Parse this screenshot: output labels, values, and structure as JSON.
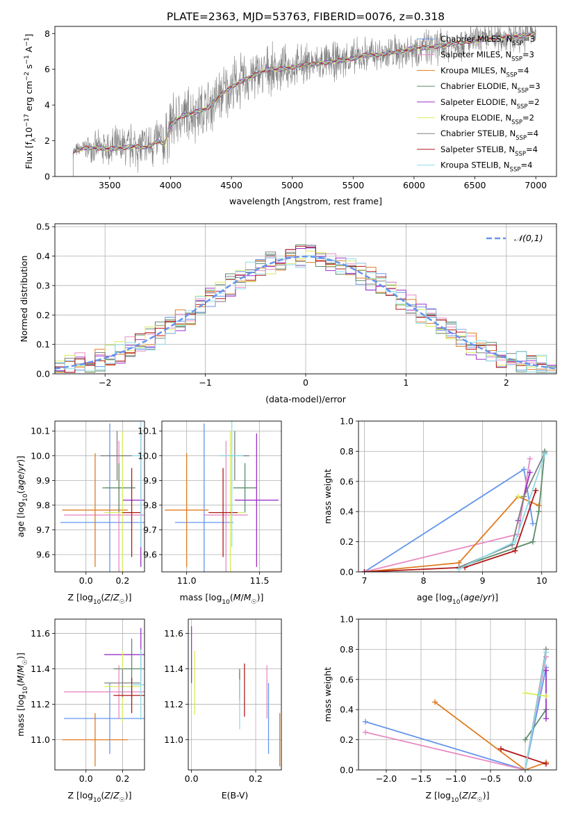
{
  "title": "PLATE=2363, MJD=53763, FIBERID=0076, z=0.318",
  "colors": {
    "Chabrier MILES": "#6495ed",
    "Salpeter MILES": "#e88bc4",
    "Kroupa MILES": "#e07b20",
    "Chabrier ELODIE": "#5c8a6a",
    "Salpeter ELODIE": "#9b30c8",
    "Kroupa ELODIE": "#d8ec5c",
    "Chabrier STELIB": "#808080",
    "Salpeter STELIB": "#b01818",
    "Kroupa STELIB": "#8cdce8"
  },
  "chart_data": [
    {
      "id": "spectrum",
      "type": "line",
      "xlabel": "wavelength [Angstrom, rest frame]",
      "ylabel": "Flux [f_λ 10^-17 erg cm^-2 s^-1 A^-1]",
      "xlim": [
        3050,
        7170
      ],
      "ylim": [
        0,
        8.4
      ],
      "xticks": [
        3500,
        4000,
        4500,
        5000,
        5500,
        6000,
        6500,
        7000
      ],
      "yticks": [
        0,
        2,
        4,
        6,
        8
      ],
      "grid": false,
      "legend_position": "upper-right",
      "legend": [
        {
          "name": "Chabrier MILES",
          "label": "Chabrier MILES, N",
          "sub": "SSP",
          "n": "=3"
        },
        {
          "name": "Salpeter MILES",
          "label": "Salpeter MILES, N",
          "sub": "SSP",
          "n": "=3"
        },
        {
          "name": "Kroupa MILES",
          "label": "Kroupa MILES, N",
          "sub": "SSP",
          "n": "=4"
        },
        {
          "name": "Chabrier ELODIE",
          "label": "Chabrier ELODIE, N",
          "sub": "SSP",
          "n": "=3"
        },
        {
          "name": "Salpeter ELODIE",
          "label": "Salpeter ELODIE, N",
          "sub": "SSP",
          "n": "=2"
        },
        {
          "name": "Kroupa ELODIE",
          "label": "Kroupa ELODIE, N",
          "sub": "SSP",
          "n": "=2"
        },
        {
          "name": "Chabrier STELIB",
          "label": "Chabrier STELIB, N",
          "sub": "SSP",
          "n": "=4"
        },
        {
          "name": "Salpeter STELIB",
          "label": "Salpeter STELIB, N",
          "sub": "SSP",
          "n": "=4"
        },
        {
          "name": "Kroupa STELIB",
          "label": "Kroupa STELIB, N",
          "sub": "SSP",
          "n": "=4"
        }
      ],
      "model_continuum": [
        [
          3200,
          1.4
        ],
        [
          3300,
          1.6
        ],
        [
          3400,
          1.6
        ],
        [
          3500,
          1.55
        ],
        [
          3600,
          1.6
        ],
        [
          3700,
          1.7
        ],
        [
          3800,
          1.6
        ],
        [
          3900,
          2.0
        ],
        [
          3950,
          1.8
        ],
        [
          4000,
          2.9
        ],
        [
          4100,
          3.4
        ],
        [
          4200,
          3.6
        ],
        [
          4300,
          3.8
        ],
        [
          4400,
          4.5
        ],
        [
          4500,
          5.0
        ],
        [
          4600,
          5.4
        ],
        [
          4700,
          5.7
        ],
        [
          4800,
          6.0
        ],
        [
          4900,
          6.0
        ],
        [
          5000,
          6.1
        ],
        [
          5100,
          6.3
        ],
        [
          5200,
          6.3
        ],
        [
          5300,
          6.4
        ],
        [
          5400,
          6.5
        ],
        [
          5500,
          6.6
        ],
        [
          5600,
          6.8
        ],
        [
          5700,
          6.8
        ],
        [
          5800,
          6.9
        ],
        [
          5900,
          7.0
        ],
        [
          6000,
          7.2
        ],
        [
          6100,
          7.2
        ],
        [
          6200,
          7.3
        ],
        [
          6300,
          7.4
        ],
        [
          6400,
          7.5
        ],
        [
          6500,
          7.6
        ],
        [
          6600,
          7.7
        ],
        [
          6700,
          7.8
        ],
        [
          6800,
          7.8
        ],
        [
          6900,
          7.9
        ],
        [
          7000,
          8.0
        ]
      ],
      "data_range": [
        3200,
        7000
      ],
      "data_scatter_amplitude": [
        [
          3200,
          0.3
        ],
        [
          3500,
          1.0
        ],
        [
          4000,
          1.4
        ],
        [
          4500,
          1.4
        ],
        [
          5000,
          1.0
        ],
        [
          5500,
          0.9
        ],
        [
          6000,
          0.9
        ],
        [
          6500,
          0.8
        ],
        [
          7000,
          0.8
        ]
      ]
    },
    {
      "id": "residuals",
      "type": "histogram",
      "xlabel": "(data-model)/error",
      "ylabel": "Normed distribution",
      "xlim": [
        -2.5,
        2.5
      ],
      "ylim": [
        0,
        0.51
      ],
      "xticks": [
        -2,
        -1,
        0,
        1,
        2
      ],
      "yticks": [
        0.0,
        0.1,
        0.2,
        0.3,
        0.4,
        0.5
      ],
      "grid": true,
      "legend_position": "upper-right",
      "reference_curve": {
        "label": "𝒩(0,1)",
        "mean": 0,
        "sigma": 1,
        "color": "#6495ed"
      },
      "bin_width": 0.1
    },
    {
      "id": "age_vs_Z",
      "type": "errorbar",
      "xlabel": "Z [log10(Z/Z☉)]",
      "ylabel": "age  [log10(age/yr)]",
      "xlim": [
        -0.17,
        0.32
      ],
      "ylim": [
        9.53,
        10.14
      ],
      "xticks": [
        0.0,
        0.2
      ],
      "yticks": [
        9.6,
        9.7,
        9.8,
        9.9,
        10.0,
        10.1
      ],
      "grid": true,
      "points": [
        {
          "name": "Chabrier MILES",
          "x": 0.13,
          "xerr": 0.27,
          "y": 9.73,
          "yerr": 0.4
        },
        {
          "name": "Salpeter MILES",
          "x": 0.18,
          "xerr": 0.3,
          "y": 9.76,
          "yerr": 0.3
        },
        {
          "name": "Kroupa MILES",
          "x": 0.05,
          "xerr": 0.18,
          "y": 9.78,
          "yerr": 0.23
        },
        {
          "name": "Chabrier ELODIE",
          "x": 0.18,
          "xerr": 0.09,
          "y": 9.87,
          "yerr": 0.1
        },
        {
          "name": "Salpeter ELODIE",
          "x": 0.3,
          "xerr": 0.1,
          "y": 9.82,
          "yerr": 0.27
        },
        {
          "name": "Kroupa ELODIE",
          "x": 0.2,
          "xerr": 0.1,
          "y": 9.77,
          "yerr": 0.33
        },
        {
          "name": "Chabrier STELIB",
          "x": 0.17,
          "xerr": 0.09,
          "y": 10.0,
          "yerr": 0.1
        },
        {
          "name": "Salpeter STELIB",
          "x": 0.25,
          "xerr": 0.05,
          "y": 9.77,
          "yerr": 0.18
        },
        {
          "name": "Kroupa STELIB",
          "x": 0.3,
          "xerr": 0.05,
          "y": 10.0,
          "yerr": 0.37
        }
      ]
    },
    {
      "id": "age_vs_mass",
      "type": "errorbar",
      "xlabel": "mass [log10(M/M☉)]",
      "xlim": [
        10.83,
        11.65
      ],
      "ylim": [
        9.53,
        10.14
      ],
      "xticks": [
        11.0,
        11.5
      ],
      "yticks": [
        9.6,
        9.7,
        9.8,
        9.9,
        10.0,
        10.1
      ],
      "grid": true,
      "points": [
        {
          "name": "Chabrier MILES",
          "x": 11.12,
          "xerr": 0.2,
          "y": 9.73,
          "yerr": 0.4
        },
        {
          "name": "Salpeter MILES",
          "x": 11.27,
          "xerr": 0.15,
          "y": 9.76,
          "yerr": 0.3
        },
        {
          "name": "Kroupa MILES",
          "x": 11.0,
          "xerr": 0.15,
          "y": 9.78,
          "yerr": 0.23
        },
        {
          "name": "Chabrier ELODIE",
          "x": 11.4,
          "xerr": 0.08,
          "y": 9.87,
          "yerr": 0.1
        },
        {
          "name": "Salpeter ELODIE",
          "x": 11.48,
          "xerr": 0.15,
          "y": 9.82,
          "yerr": 0.27
        },
        {
          "name": "Kroupa ELODIE",
          "x": 11.3,
          "xerr": 0.1,
          "y": 9.77,
          "yerr": 0.33
        },
        {
          "name": "Chabrier STELIB",
          "x": 11.33,
          "xerr": 0.1,
          "y": 10.0,
          "yerr": 0.1
        },
        {
          "name": "Salpeter STELIB",
          "x": 11.25,
          "xerr": 0.1,
          "y": 9.77,
          "yerr": 0.18
        },
        {
          "name": "Kroupa STELIB",
          "x": 11.31,
          "xerr": 0.08,
          "y": 10.0,
          "yerr": 0.37
        }
      ]
    },
    {
      "id": "weight_vs_age",
      "type": "line",
      "xlabel": "age  [log10(age/yr)]",
      "ylabel": "mass weight",
      "xlim": [
        6.9,
        10.25
      ],
      "ylim": [
        0,
        1.0
      ],
      "xticks": [
        7,
        8,
        9,
        10
      ],
      "yticks": [
        0.0,
        0.2,
        0.4,
        0.6,
        0.8,
        1.0
      ],
      "grid": true,
      "series": [
        {
          "name": "Chabrier MILES",
          "points": [
            [
              7.0,
              0.0
            ],
            [
              9.7,
              0.68
            ],
            [
              9.85,
              0.32
            ]
          ]
        },
        {
          "name": "Salpeter MILES",
          "points": [
            [
              7.0,
              0.0
            ],
            [
              9.6,
              0.25
            ],
            [
              9.8,
              0.75
            ]
          ]
        },
        {
          "name": "Kroupa MILES",
          "points": [
            [
              7.0,
              0.0
            ],
            [
              8.6,
              0.06
            ],
            [
              9.6,
              0.5
            ],
            [
              9.95,
              0.44
            ]
          ]
        },
        {
          "name": "Chabrier ELODIE",
          "points": [
            [
              8.6,
              0.03
            ],
            [
              9.85,
              0.2
            ],
            [
              9.95,
              0.4
            ],
            [
              10.05,
              0.8
            ]
          ]
        },
        {
          "name": "Salpeter ELODIE",
          "points": [
            [
              9.6,
              0.34
            ],
            [
              9.8,
              0.66
            ]
          ]
        },
        {
          "name": "Kroupa ELODIE",
          "points": [
            [
              9.6,
              0.5
            ],
            [
              9.7,
              0.5
            ]
          ]
        },
        {
          "name": "Chabrier STELIB",
          "points": [
            [
              8.6,
              0.03
            ],
            [
              9.5,
              0.18
            ],
            [
              9.7,
              0.5
            ],
            [
              10.05,
              0.79
            ]
          ]
        },
        {
          "name": "Salpeter STELIB",
          "points": [
            [
              7.0,
              0.0
            ],
            [
              8.7,
              0.03
            ],
            [
              9.55,
              0.14
            ],
            [
              9.9,
              0.54
            ]
          ]
        },
        {
          "name": "Kroupa STELIB",
          "points": [
            [
              8.6,
              0.02
            ],
            [
              9.55,
              0.2
            ],
            [
              10.05,
              0.78
            ]
          ]
        }
      ]
    },
    {
      "id": "mass_vs_Z",
      "type": "errorbar",
      "xlabel": "Z [log10(Z/Z☉)]",
      "ylabel": "mass [log10(M/M☉)]",
      "xlim": [
        -0.17,
        0.32
      ],
      "ylim": [
        10.83,
        11.68
      ],
      "xticks": [
        0.0,
        0.2
      ],
      "yticks": [
        11.0,
        11.2,
        11.4,
        11.6
      ],
      "grid": true,
      "points": [
        {
          "name": "Chabrier MILES",
          "x": 0.13,
          "xerr": 0.25,
          "y": 11.12,
          "yerr": 0.2
        },
        {
          "name": "Salpeter MILES",
          "x": 0.18,
          "xerr": 0.3,
          "y": 11.27,
          "yerr": 0.15
        },
        {
          "name": "Kroupa MILES",
          "x": 0.05,
          "xerr": 0.18,
          "y": 11.0,
          "yerr": 0.15
        },
        {
          "name": "Chabrier ELODIE",
          "x": 0.25,
          "xerr": 0.1,
          "y": 11.4,
          "yerr": 0.17
        },
        {
          "name": "Salpeter ELODIE",
          "x": 0.3,
          "xerr": 0.2,
          "y": 11.48,
          "yerr": 0.15
        },
        {
          "name": "Kroupa ELODIE",
          "x": 0.2,
          "xerr": 0.1,
          "y": 11.3,
          "yerr": 0.2
        },
        {
          "name": "Chabrier STELIB",
          "x": 0.2,
          "xerr": 0.1,
          "y": 11.32,
          "yerr": 0.08
        },
        {
          "name": "Salpeter STELIB",
          "x": 0.25,
          "xerr": 0.1,
          "y": 11.25,
          "yerr": 0.1
        },
        {
          "name": "Kroupa STELIB",
          "x": 0.3,
          "xerr": 0.05,
          "y": 11.31,
          "yerr": 0.2
        }
      ]
    },
    {
      "id": "mass_vs_ebv",
      "type": "errorbar",
      "xlabel": "E(B-V)",
      "xlim": [
        -0.01,
        0.28
      ],
      "ylim": [
        10.83,
        11.68
      ],
      "xticks": [
        0.0,
        0.2
      ],
      "yticks": [
        11.0,
        11.2,
        11.4,
        11.6
      ],
      "grid": true,
      "points": [
        {
          "name": "Chabrier MILES",
          "x": 0.24,
          "xerr": 0,
          "y": 11.12,
          "yerr": 0.2
        },
        {
          "name": "Salpeter MILES",
          "x": 0.235,
          "xerr": 0,
          "y": 11.27,
          "yerr": 0.15
        },
        {
          "name": "Kroupa MILES",
          "x": 0.275,
          "xerr": 0,
          "y": 11.0,
          "yerr": 0.15
        },
        {
          "name": "Chabrier ELODIE",
          "x": 0.15,
          "xerr": 0,
          "y": 11.32,
          "yerr": 0.08
        },
        {
          "name": "Salpeter ELODIE",
          "x": 0.0,
          "xerr": 0,
          "y": 11.48,
          "yerr": 0.16
        },
        {
          "name": "Kroupa ELODIE",
          "x": 0.01,
          "xerr": 0,
          "y": 11.32,
          "yerr": 0.18
        },
        {
          "name": "Chabrier STELIB",
          "x": 0.15,
          "xerr": 0,
          "y": 11.3,
          "yerr": 0.08
        },
        {
          "name": "Salpeter STELIB",
          "x": 0.165,
          "xerr": 0,
          "y": 11.28,
          "yerr": 0.15
        },
        {
          "name": "Kroupa STELIB",
          "x": 0.15,
          "xerr": 0,
          "y": 11.2,
          "yerr": 0.14
        }
      ]
    },
    {
      "id": "weight_vs_Z",
      "type": "line",
      "xlabel": "Z [log10(Z/Z☉)]",
      "ylabel": "mass weight",
      "xlim": [
        -2.4,
        0.45
      ],
      "ylim": [
        0,
        1.0
      ],
      "xticks": [
        -2.0,
        -1.5,
        -1.0,
        -0.5,
        0.0
      ],
      "yticks": [
        0.0,
        0.2,
        0.4,
        0.6,
        0.8,
        1.0
      ],
      "grid": true,
      "series": [
        {
          "name": "Chabrier MILES",
          "points": [
            [
              -2.3,
              0.32
            ],
            [
              0.0,
              0.0
            ],
            [
              0.3,
              0.68
            ]
          ]
        },
        {
          "name": "Salpeter MILES",
          "points": [
            [
              -2.3,
              0.25
            ],
            [
              0.0,
              0.0
            ],
            [
              0.3,
              0.75
            ]
          ]
        },
        {
          "name": "Kroupa MILES",
          "points": [
            [
              -1.3,
              0.45
            ],
            [
              0.0,
              0.0
            ],
            [
              0.3,
              0.05
            ]
          ]
        },
        {
          "name": "Chabrier ELODIE",
          "points": [
            [
              0.0,
              0.2
            ],
            [
              0.3,
              0.4
            ]
          ]
        },
        {
          "name": "Salpeter ELODIE",
          "points": [
            [
              0.3,
              0.34
            ],
            [
              0.3,
              0.66
            ]
          ]
        },
        {
          "name": "Kroupa ELODIE",
          "points": [
            [
              0.0,
              0.51
            ],
            [
              0.3,
              0.49
            ]
          ]
        },
        {
          "name": "Chabrier STELIB",
          "points": [
            [
              0.0,
              0.0
            ],
            [
              0.3,
              0.8
            ]
          ]
        },
        {
          "name": "Salpeter STELIB",
          "points": [
            [
              -0.35,
              0.14
            ],
            [
              0.3,
              0.04
            ]
          ]
        },
        {
          "name": "Kroupa STELIB",
          "points": [
            [
              0.0,
              0.0
            ],
            [
              0.3,
              0.78
            ]
          ]
        }
      ]
    }
  ]
}
